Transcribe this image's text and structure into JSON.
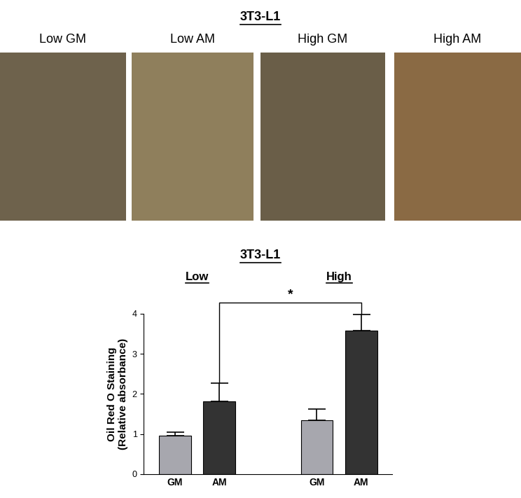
{
  "figure_title": "3T3-L1",
  "image_labels": [
    "Low GM",
    "Low AM",
    "High GM",
    "High AM"
  ],
  "chart_data": {
    "type": "bar",
    "title": "3T3-L1",
    "group_labels": [
      "Low",
      "High"
    ],
    "categories": [
      "GM",
      "AM",
      "GM",
      "AM"
    ],
    "values": [
      0.95,
      1.82,
      1.35,
      3.58
    ],
    "errors": [
      0.1,
      0.45,
      0.28,
      0.4
    ],
    "colors": [
      "#a7a7ae",
      "#333333",
      "#a7a7ae",
      "#333333"
    ],
    "ylabel": "Oil Red O Staining\n(Relative absorbance)",
    "ylim": [
      0,
      4
    ],
    "yticks": [
      0,
      1,
      2,
      3,
      4
    ],
    "significance": [
      {
        "text": "*",
        "between": [
          1,
          3
        ]
      }
    ]
  }
}
